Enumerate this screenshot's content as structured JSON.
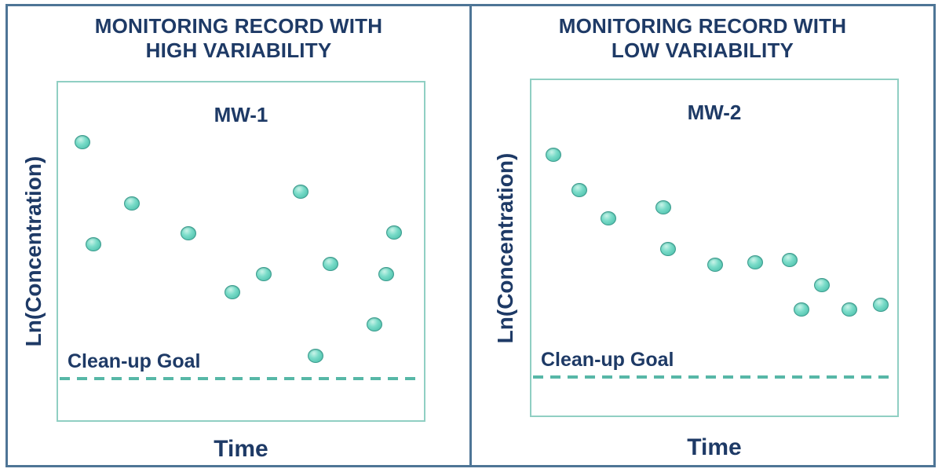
{
  "panels": [
    {
      "heading_line1": "MONITORING RECORD WITH",
      "heading_line2": "HIGH VARIABILITY",
      "well_label": "MW-1",
      "ylabel": "Ln(Concentration)",
      "xlabel": "Time",
      "goal_label": "Clean-up Goal"
    },
    {
      "heading_line1": "MONITORING RECORD WITH",
      "heading_line2": "LOW VARIABILITY",
      "well_label": "MW-2",
      "ylabel": "Ln(Concentration)",
      "xlabel": "Time",
      "goal_label": "Clean-up Goal"
    }
  ],
  "colors": {
    "heading_text": "#1e3a66",
    "axis_text": "#1e3a66",
    "dot_fill": "#6fd8c4",
    "dot_border": "#3c9c8e",
    "plot_box_border": "#90cfc3",
    "goal_line": "#57b7a7",
    "outer_border": "#4e7596",
    "background": "#ffffff"
  },
  "chart_data": [
    {
      "type": "scatter",
      "title": "MW-1",
      "panel_heading": "MONITORING RECORD WITH HIGH VARIABILITY",
      "xlabel": "Time",
      "ylabel": "Ln(Concentration)",
      "axis_ticks": "none (conceptual axes, unlabeled)",
      "units": "normalized plot-area fraction (x: 0=left, 1=right; y: 0=bottom, 1=top)",
      "points": [
        {
          "x": 0.066,
          "y": 0.823
        },
        {
          "x": 0.096,
          "y": 0.521
        },
        {
          "x": 0.202,
          "y": 0.641
        },
        {
          "x": 0.357,
          "y": 0.553
        },
        {
          "x": 0.477,
          "y": 0.378
        },
        {
          "x": 0.562,
          "y": 0.433
        },
        {
          "x": 0.664,
          "y": 0.677
        },
        {
          "x": 0.704,
          "y": 0.191
        },
        {
          "x": 0.745,
          "y": 0.463
        },
        {
          "x": 0.864,
          "y": 0.283
        },
        {
          "x": 0.896,
          "y": 0.433
        },
        {
          "x": 0.919,
          "y": 0.555
        }
      ],
      "cleanup_goal_y": 0.1175,
      "cleanup_goal_style": "dashed horizontal line",
      "trend": "high scatter, no clear decline toward clean-up goal",
      "legend": "none",
      "grid": false
    },
    {
      "type": "scatter",
      "title": "MW-2",
      "panel_heading": "MONITORING RECORD WITH LOW VARIABILITY",
      "xlabel": "Time",
      "ylabel": "Ln(Concentration)",
      "axis_ticks": "none (conceptual axes, unlabeled)",
      "units": "normalized plot-area fraction (x: 0=left, 1=right; y: 0=bottom, 1=top)",
      "points": [
        {
          "x": 0.06,
          "y": 0.777
        },
        {
          "x": 0.13,
          "y": 0.671
        },
        {
          "x": 0.211,
          "y": 0.587
        },
        {
          "x": 0.36,
          "y": 0.62
        },
        {
          "x": 0.374,
          "y": 0.497
        },
        {
          "x": 0.502,
          "y": 0.45
        },
        {
          "x": 0.611,
          "y": 0.457
        },
        {
          "x": 0.706,
          "y": 0.464
        },
        {
          "x": 0.738,
          "y": 0.316
        },
        {
          "x": 0.794,
          "y": 0.388
        },
        {
          "x": 0.87,
          "y": 0.316
        },
        {
          "x": 0.955,
          "y": 0.33
        }
      ],
      "cleanup_goal_y": 0.111,
      "cleanup_goal_style": "dashed horizontal line",
      "trend": "low scatter, steady decline toward clean-up goal",
      "legend": "none",
      "grid": false
    }
  ]
}
